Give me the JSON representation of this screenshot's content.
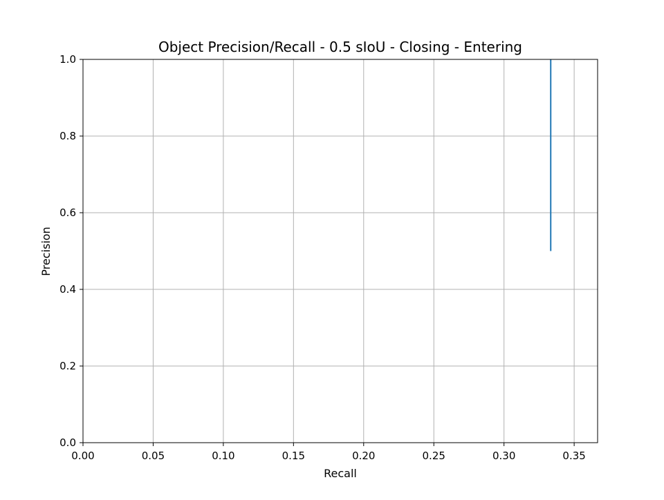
{
  "chart_data": {
    "type": "line",
    "title": "Object Precision/Recall - 0.5 sIoU - Closing - Entering",
    "xlabel": "Recall",
    "ylabel": "Precision",
    "xlim": [
      0.0,
      0.3667
    ],
    "ylim": [
      0.0,
      1.0
    ],
    "x_ticks": [
      "0.00",
      "0.05",
      "0.10",
      "0.15",
      "0.20",
      "0.25",
      "0.30",
      "0.35"
    ],
    "y_ticks": [
      "0.0",
      "0.2",
      "0.4",
      "0.6",
      "0.8",
      "1.0"
    ],
    "grid": true,
    "series": [
      {
        "color": "#1f77b4",
        "x": [
          0.3333,
          0.3333
        ],
        "y": [
          1.0,
          0.5
        ]
      }
    ]
  }
}
